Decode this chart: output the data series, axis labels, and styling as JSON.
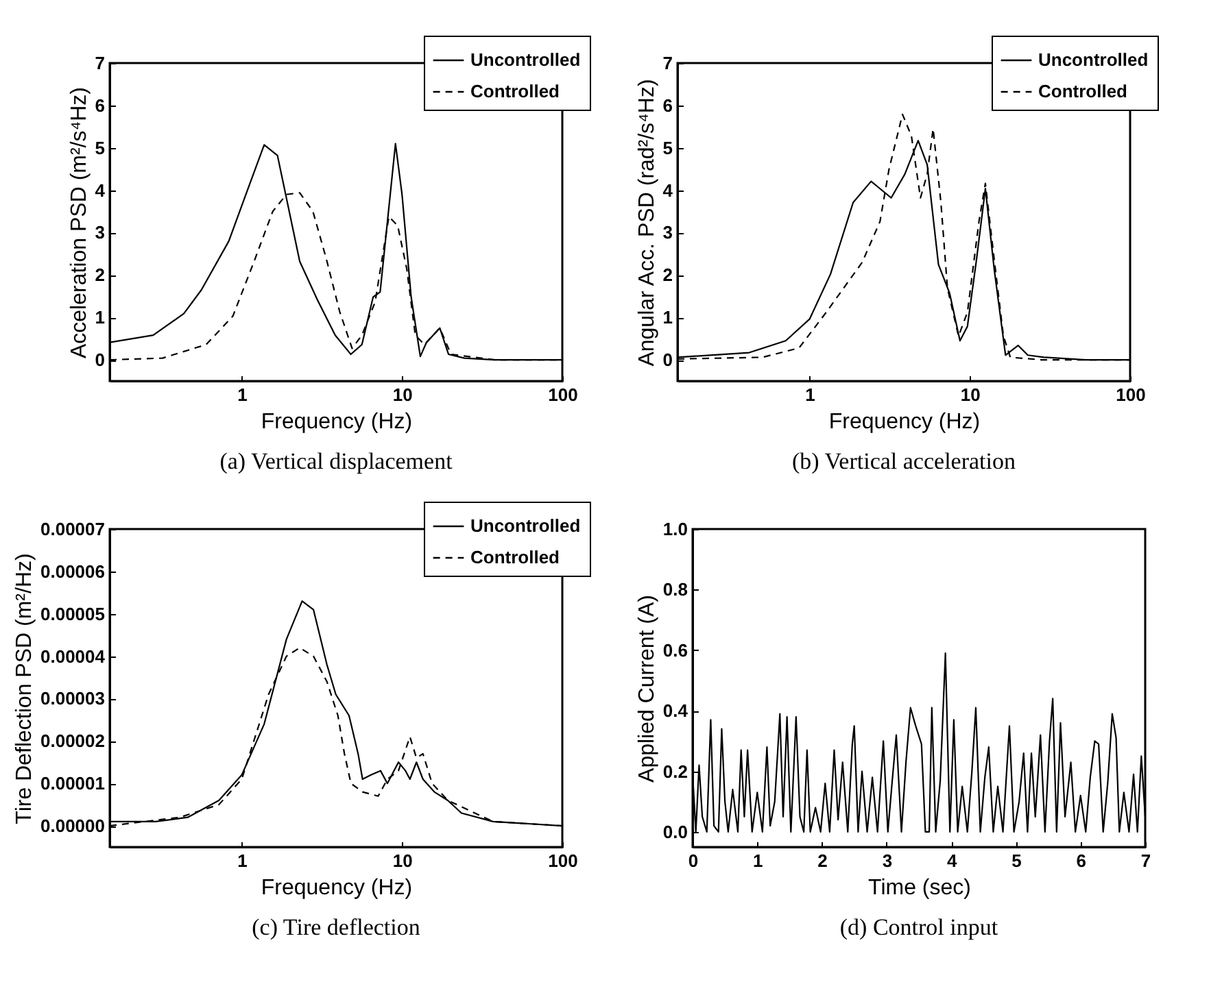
{
  "chart_data": [
    {
      "type": "line",
      "title": "(a) Vertical displacement",
      "xlabel": "Frequency (Hz)",
      "ylabel": "Acceleration PSD (m²/s⁴Hz)",
      "log": "x",
      "xlim": [
        0.15,
        100
      ],
      "xticks": [
        1,
        10,
        100
      ],
      "ylim": [
        -0.5,
        7
      ],
      "yticks": [
        0,
        1,
        2,
        3,
        4,
        5,
        6,
        7
      ],
      "legend": "top right",
      "series": [
        {
          "name": "Uncontrolled",
          "color": "#000000",
          "line_style": "solid",
          "x": [
            0.15,
            0.28,
            0.435,
            0.56,
            0.83,
            1.07,
            1.38,
            1.67,
            2.3,
            2.96,
            3.83,
            4.79,
            5.62,
            6.6,
            7.3,
            8.0,
            9.1,
            10,
            11.4,
            13,
            14.2,
            17.2,
            19.5,
            24.5,
            38,
            100
          ],
          "values": [
            0.41,
            0.58,
            1.09,
            1.65,
            2.8,
            3.94,
            5.07,
            4.82,
            2.32,
            1.42,
            0.58,
            0.13,
            0.36,
            1.48,
            1.6,
            3.05,
            5.1,
            3.9,
            1.48,
            0.08,
            0.41,
            0.75,
            0.13,
            0.04,
            0,
            0
          ]
        },
        {
          "name": "Controlled",
          "color": "#000000",
          "line_style": "dashed",
          "x": [
            0.15,
            0.32,
            0.6,
            0.88,
            1.21,
            1.56,
            1.9,
            2.3,
            2.78,
            3.37,
            4.08,
            4.88,
            5.62,
            6.8,
            8.28,
            9.4,
            10.7,
            12.1,
            13.8,
            17.2,
            20.2,
            38,
            100
          ],
          "values": [
            0,
            0.04,
            0.36,
            1.03,
            2.38,
            3.5,
            3.9,
            3.94,
            3.5,
            2.38,
            1.14,
            0.27,
            0.58,
            1.37,
            3.38,
            3.16,
            2.15,
            0.58,
            0.36,
            0.75,
            0.13,
            0,
            0
          ]
        }
      ]
    },
    {
      "type": "line",
      "title": "(b) Vertical acceleration",
      "xlabel": "Frequency (Hz)",
      "ylabel": "Angular Acc. PSD (rad²/s⁴Hz)",
      "log": "x",
      "xlim": [
        0.15,
        100
      ],
      "xticks": [
        1,
        10,
        100
      ],
      "ylim": [
        -0.5,
        7
      ],
      "yticks": [
        0,
        1,
        2,
        3,
        4,
        5,
        6,
        7
      ],
      "legend": "top right",
      "series": [
        {
          "name": "Uncontrolled",
          "color": "#000000",
          "line_style": "solid",
          "x": [
            0.15,
            0.42,
            0.71,
            1,
            1.35,
            1.87,
            2.42,
            3.23,
            3.93,
            4.76,
            5.42,
            6.37,
            7.48,
            8.68,
            9.66,
            11,
            12.5,
            14.2,
            16.7,
            20,
            23,
            29,
            53,
            100
          ],
          "values": [
            0.06,
            0.17,
            0.45,
            0.96,
            2.02,
            3.71,
            4.21,
            3.82,
            4.38,
            5.17,
            4.6,
            2.25,
            1.57,
            0.45,
            0.79,
            2.36,
            4.04,
            2.13,
            0.11,
            0.34,
            0.11,
            0.06,
            0,
            0
          ]
        },
        {
          "name": "Controlled",
          "color": "#000000",
          "line_style": "dashed",
          "x": [
            0.15,
            0.51,
            0.86,
            1.27,
            2.13,
            2.75,
            3.13,
            3.8,
            4.32,
            4.92,
            5.42,
            5.9,
            6.6,
            7.25,
            8.5,
            9.66,
            11.4,
            12.5,
            14.2,
            16.2,
            17.9,
            28,
            100
          ],
          "values": [
            0.02,
            0.06,
            0.28,
            1.12,
            2.3,
            3.26,
            4.49,
            5.79,
            5.28,
            3.82,
            4.38,
            5.45,
            3.71,
            1.69,
            0.56,
            1.12,
            3.26,
            4.16,
            2.36,
            0.56,
            0.06,
            0,
            0
          ]
        }
      ]
    },
    {
      "type": "line",
      "title": "(c) Tire deflection",
      "xlabel": "Frequency (Hz)",
      "ylabel": "Tire Deflection PSD (m²/Hz)",
      "log": "x",
      "xlim": [
        0.15,
        100
      ],
      "xticks": [
        1,
        10,
        100
      ],
      "ylim": [
        -5e-06,
        7e-05
      ],
      "yticks": [
        {
          "value": 0,
          "label": "0.00000"
        },
        {
          "value": 1e-05,
          "label": "0.00001"
        },
        {
          "value": 2e-05,
          "label": "0.00002"
        },
        {
          "value": 3e-05,
          "label": "0.00003"
        },
        {
          "value": 4e-05,
          "label": "0.00004"
        },
        {
          "value": 5e-05,
          "label": "0.00005"
        },
        {
          "value": 6e-05,
          "label": "0.00006"
        },
        {
          "value": 7e-05,
          "label": "0.00007"
        }
      ],
      "legend": "top right",
      "series": [
        {
          "name": "Uncontrolled",
          "color": "#000000",
          "line_style": "solid",
          "x": [
            0.15,
            0.29,
            0.46,
            0.72,
            1,
            1.38,
            1.9,
            2.38,
            2.8,
            3.4,
            3.86,
            4.67,
            5.32,
            5.67,
            6.4,
            7.34,
            8.1,
            9.5,
            10.5,
            11.2,
            12.3,
            13.5,
            15.9,
            19.3,
            23.5,
            37,
            100
          ],
          "values": [
            1e-06,
            1e-06,
            2e-06,
            6e-06,
            1.2e-05,
            2.4e-05,
            4.4e-05,
            5.3e-05,
            5.1e-05,
            3.8e-05,
            3.1e-05,
            2.6e-05,
            1.7e-05,
            1.1e-05,
            1.2e-05,
            1.3e-05,
            1e-05,
            1.5e-05,
            1.3e-05,
            1.1e-05,
            1.5e-05,
            1.1e-05,
            8e-06,
            6e-06,
            3e-06,
            1e-06,
            0
          ]
        },
        {
          "name": "Controlled",
          "color": "#000000",
          "line_style": "dashed",
          "x": [
            0.15,
            0.41,
            0.72,
            1,
            1.47,
            1.9,
            2.3,
            2.8,
            3.4,
            3.98,
            4.37,
            4.8,
            5.67,
            7.1,
            8.1,
            9.5,
            11.2,
            12.3,
            13.5,
            15.4,
            19.3,
            37,
            100
          ],
          "values": [
            0,
            2e-06,
            5e-06,
            1.1e-05,
            3.1e-05,
            4e-05,
            4.2e-05,
            4e-05,
            3.4e-05,
            2.6e-05,
            1.7e-05,
            1e-05,
            8e-06,
            7e-06,
            1.1e-05,
            1.3e-05,
            2.1e-05,
            1.6e-05,
            1.7e-05,
            1e-05,
            6e-06,
            1e-06,
            0
          ]
        }
      ]
    },
    {
      "type": "line",
      "title": "(d) Control input",
      "xlabel": "Time (sec)",
      "ylabel": "Applied Current (A)",
      "xlim": [
        0,
        7
      ],
      "xticks": [
        0,
        1,
        2,
        3,
        4,
        5,
        6,
        7
      ],
      "ylim": [
        -0.05,
        1
      ],
      "yticks": [
        {
          "value": 0,
          "label": "0.0"
        },
        0.2,
        0.4,
        0.6,
        0.8,
        {
          "value": 1,
          "label": "1.0"
        }
      ],
      "series": [
        {
          "color": "#000000",
          "line_style": "solid",
          "x": [
            0,
            0.05,
            0.1,
            0.15,
            0.22,
            0.28,
            0.33,
            0.4,
            0.45,
            0.5,
            0.55,
            0.62,
            0.7,
            0.75,
            0.8,
            0.85,
            0.92,
            1.0,
            1.08,
            1.15,
            1.2,
            1.27,
            1.35,
            1.4,
            1.46,
            1.52,
            1.6,
            1.66,
            1.72,
            1.77,
            1.82,
            1.9,
            1.98,
            2.05,
            2.12,
            2.19,
            2.25,
            2.32,
            2.4,
            2.47,
            2.5,
            2.56,
            2.62,
            2.7,
            2.78,
            2.86,
            2.95,
            3.02,
            3.08,
            3.15,
            3.23,
            3.3,
            3.37,
            3.45,
            3.54,
            3.6,
            3.66,
            3.7,
            3.76,
            3.83,
            3.91,
            3.98,
            4.04,
            4.1,
            4.17,
            4.25,
            4.32,
            4.38,
            4.45,
            4.52,
            4.58,
            4.65,
            4.72,
            4.8,
            4.9,
            4.97,
            5.05,
            5.12,
            5.18,
            5.24,
            5.3,
            5.38,
            5.45,
            5.52,
            5.57,
            5.63,
            5.69,
            5.76,
            5.85,
            5.92,
            6.0,
            6.08,
            6.15,
            6.22,
            6.28,
            6.35,
            6.42,
            6.49,
            6.55,
            6.6,
            6.67,
            6.75,
            6.82,
            6.88,
            6.94,
            7.0
          ],
          "values": [
            0.19,
            0.0,
            0.22,
            0.05,
            0.0,
            0.37,
            0.02,
            0.0,
            0.34,
            0.1,
            0.0,
            0.14,
            0.0,
            0.27,
            0.05,
            0.27,
            0.0,
            0.13,
            0.0,
            0.28,
            0.02,
            0.1,
            0.39,
            0.05,
            0.38,
            0.0,
            0.38,
            0.05,
            0.0,
            0.27,
            0.0,
            0.08,
            0.0,
            0.16,
            0.0,
            0.27,
            0.04,
            0.23,
            0.0,
            0.29,
            0.35,
            0.0,
            0.2,
            0.0,
            0.18,
            0.0,
            0.3,
            0.0,
            0.15,
            0.32,
            0.0,
            0.23,
            0.41,
            0.35,
            0.29,
            0.0,
            0.0,
            0.41,
            0.0,
            0.17,
            0.59,
            0.0,
            0.37,
            0.0,
            0.15,
            0.0,
            0.2,
            0.41,
            0.0,
            0.18,
            0.28,
            0.0,
            0.15,
            0.0,
            0.35,
            0.0,
            0.1,
            0.26,
            0.0,
            0.26,
            0.05,
            0.32,
            0.0,
            0.3,
            0.44,
            0.0,
            0.36,
            0.05,
            0.23,
            0.0,
            0.12,
            0.0,
            0.18,
            0.3,
            0.29,
            0.0,
            0.16,
            0.39,
            0.31,
            0.0,
            0.13,
            0.0,
            0.19,
            0.0,
            0.25,
            0.05
          ]
        }
      ]
    }
  ]
}
